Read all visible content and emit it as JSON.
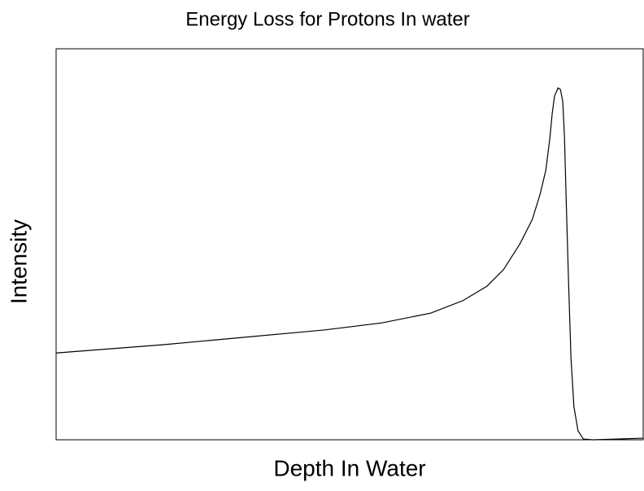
{
  "chart_data": {
    "type": "line",
    "title": "Energy Loss for Protons In water",
    "xlabel": "Depth In Water",
    "ylabel": "Intensity",
    "x": [
      0,
      18.1,
      31.9,
      45.8,
      55.5,
      63.8,
      69.3,
      73.4,
      76.2,
      79.0,
      81.1,
      82.4,
      83.4,
      84.1,
      84.5,
      84.9,
      85.5,
      85.9,
      86.3,
      86.6,
      86.9,
      87.3,
      87.7,
      88.2,
      88.9,
      89.8,
      91.4,
      100
    ],
    "series": [
      {
        "name": null,
        "color": "#000000",
        "values": [
          22.2,
          24.3,
          26.2,
          28.1,
          29.9,
          32.4,
          35.6,
          39.3,
          43.5,
          50.1,
          56.3,
          62.6,
          68.8,
          77.1,
          83.4,
          87.9,
          90.0,
          89.6,
          86.5,
          77.1,
          60.5,
          39.7,
          21.0,
          8.5,
          2.3,
          0.2,
          0,
          0.4
        ]
      }
    ],
    "xlim": [
      0,
      100
    ],
    "ylim": [
      0,
      100
    ],
    "grid": false
  }
}
